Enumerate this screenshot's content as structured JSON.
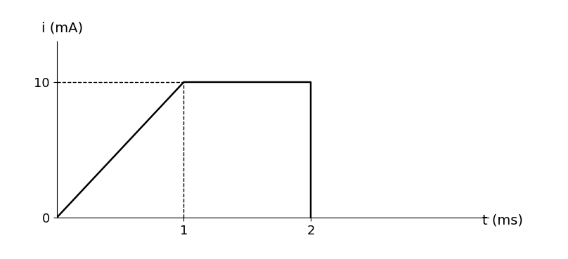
{
  "chart_data": {
    "type": "line",
    "x_label": "t (ms)",
    "y_label": "i (mA)",
    "x": [
      0,
      1,
      2,
      2
    ],
    "values": [
      0,
      10,
      10,
      0
    ],
    "color": "#000000",
    "line_style": "solid",
    "xlim": [
      0,
      3.4
    ],
    "ylim": [
      0,
      13
    ],
    "xticks": [
      1,
      2
    ],
    "yticks": [
      0,
      10
    ],
    "grid": false
  }
}
